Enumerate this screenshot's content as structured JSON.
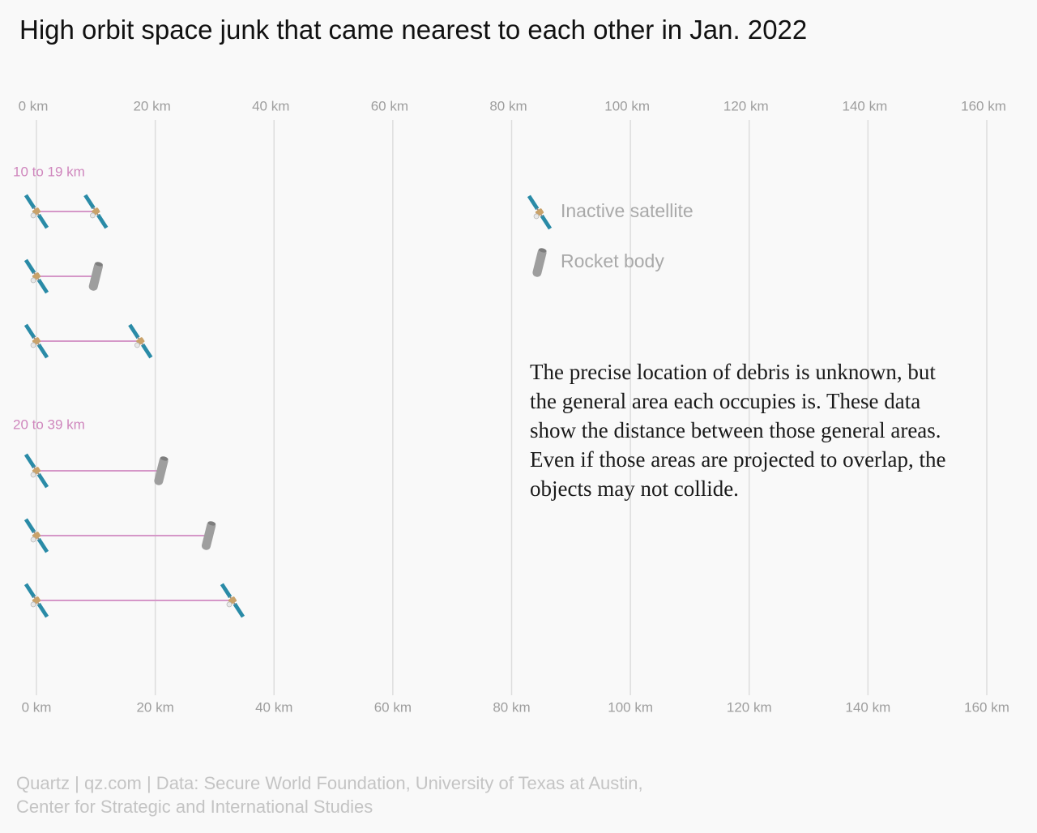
{
  "chart_data": {
    "type": "scatter",
    "title": "High orbit space junk that came nearest to each other in Jan. 2022",
    "x_unit": "km",
    "xlim": [
      0,
      160
    ],
    "grid": true,
    "x_ticks": [
      {
        "value": 0,
        "label": "0 km"
      },
      {
        "value": 20,
        "label": "20 km"
      },
      {
        "value": 40,
        "label": "40 km"
      },
      {
        "value": 60,
        "label": "60 km"
      },
      {
        "value": 80,
        "label": "80 km"
      },
      {
        "value": 100,
        "label": "100 km"
      },
      {
        "value": 120,
        "label": "120 km"
      },
      {
        "value": 140,
        "label": "140 km"
      },
      {
        "value": 160,
        "label": "160 km"
      }
    ],
    "groups": [
      {
        "label": "10 to 19 km",
        "pairs": [
          {
            "distance_km": 10,
            "object_a": "Inactive satellite",
            "object_b": "Inactive satellite"
          },
          {
            "distance_km": 10,
            "object_a": "Inactive satellite",
            "object_b": "Rocket body"
          },
          {
            "distance_km": 17.5,
            "object_a": "Inactive satellite",
            "object_b": "Inactive satellite"
          }
        ]
      },
      {
        "label": "20 to 39 km",
        "pairs": [
          {
            "distance_km": 21,
            "object_a": "Inactive satellite",
            "object_b": "Rocket body"
          },
          {
            "distance_km": 29,
            "object_a": "Inactive satellite",
            "object_b": "Rocket body"
          },
          {
            "distance_km": 33,
            "object_a": "Inactive satellite",
            "object_b": "Inactive satellite"
          }
        ]
      }
    ],
    "legend": {
      "placement": "right",
      "items": [
        {
          "label": "Inactive satellite",
          "icon": "satellite-icon"
        },
        {
          "label": "Rocket body",
          "icon": "rocket-body-icon"
        }
      ]
    },
    "annotation": "The precise location of debris is unknown, but the general area each occupies is. These data show the distance between those general areas. Even if those areas are projected to overlap, the objects may not collide.",
    "colors": {
      "connector": "#d597c8",
      "group_label": "#cf86bd",
      "satellite_panel": "#2a8ba7",
      "satellite_body": "#c9a26a",
      "rocket_body": "#9e9e9e",
      "grid": "#dddddd",
      "tick_label": "#9e9e9e",
      "legend_text": "#a9a9a9"
    }
  },
  "footer": {
    "line1": "Quartz | qz.com | Data: Secure World Foundation, University of Texas at Austin,",
    "line2": "Center for Strategic and International Studies"
  }
}
